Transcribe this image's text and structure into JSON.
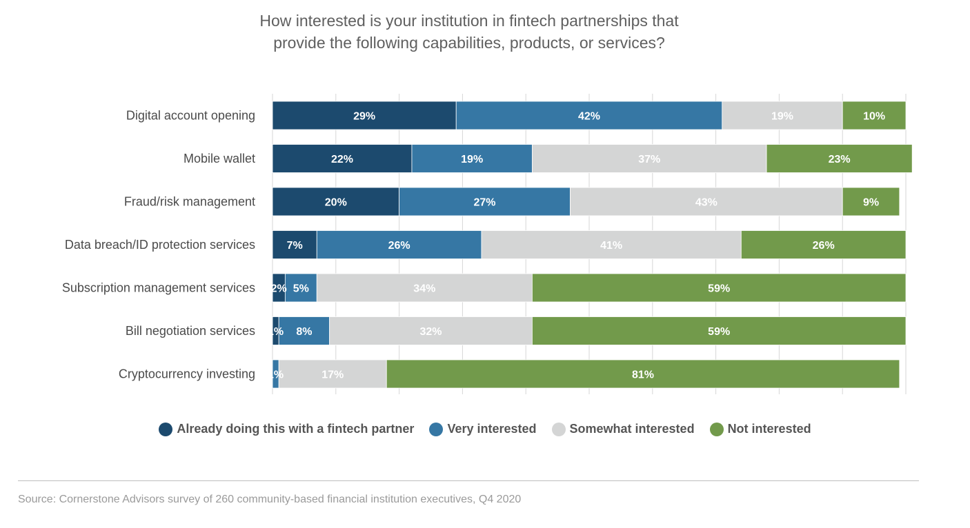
{
  "title_lines": [
    "How interested is your institution in fintech partnerships that",
    "provide the following capabilities, products, or services?"
  ],
  "chart_data": {
    "type": "bar",
    "orientation": "horizontal",
    "stacked": true,
    "title": "How interested is your institution in fintech partnerships that provide the following capabilities, products, or services?",
    "xlim": [
      0,
      100
    ],
    "grid": true,
    "legend_position": "bottom",
    "categories": [
      "Digital account opening",
      "Mobile wallet",
      "Fraud/risk management",
      "Data breach/ID protection services",
      "Subscription management services",
      "Bill negotiation services",
      "Cryptocurrency investing"
    ],
    "series": [
      {
        "name": "Already doing this with a fintech partner",
        "color": "#1c4a6e",
        "values": [
          29,
          22,
          20,
          7,
          2,
          1,
          0
        ]
      },
      {
        "name": "Very interested",
        "color": "#3677a4",
        "values": [
          42,
          19,
          27,
          26,
          5,
          8,
          1
        ]
      },
      {
        "name": "Somewhat interested",
        "color": "#d4d5d5",
        "values": [
          19,
          37,
          43,
          41,
          34,
          32,
          17
        ]
      },
      {
        "name": "Not interested",
        "color": "#729a4b",
        "values": [
          10,
          23,
          9,
          26,
          59,
          59,
          81
        ]
      }
    ],
    "data_labels": [
      [
        "29%",
        "42%",
        "19%",
        "10%"
      ],
      [
        "22%",
        "19%",
        "37%",
        "23%"
      ],
      [
        "20%",
        "27%",
        "43%",
        "9%"
      ],
      [
        "7%",
        "26%",
        "41%",
        "26%"
      ],
      [
        "2%",
        "5%",
        "34%",
        "59%"
      ],
      [
        "1%",
        "8%",
        "32%",
        "59%"
      ],
      [
        "",
        "1%",
        "17%",
        "81%"
      ]
    ]
  },
  "source": "Source: Cornerstone Advisors survey of 260 community-based financial institution executives, Q4 2020"
}
